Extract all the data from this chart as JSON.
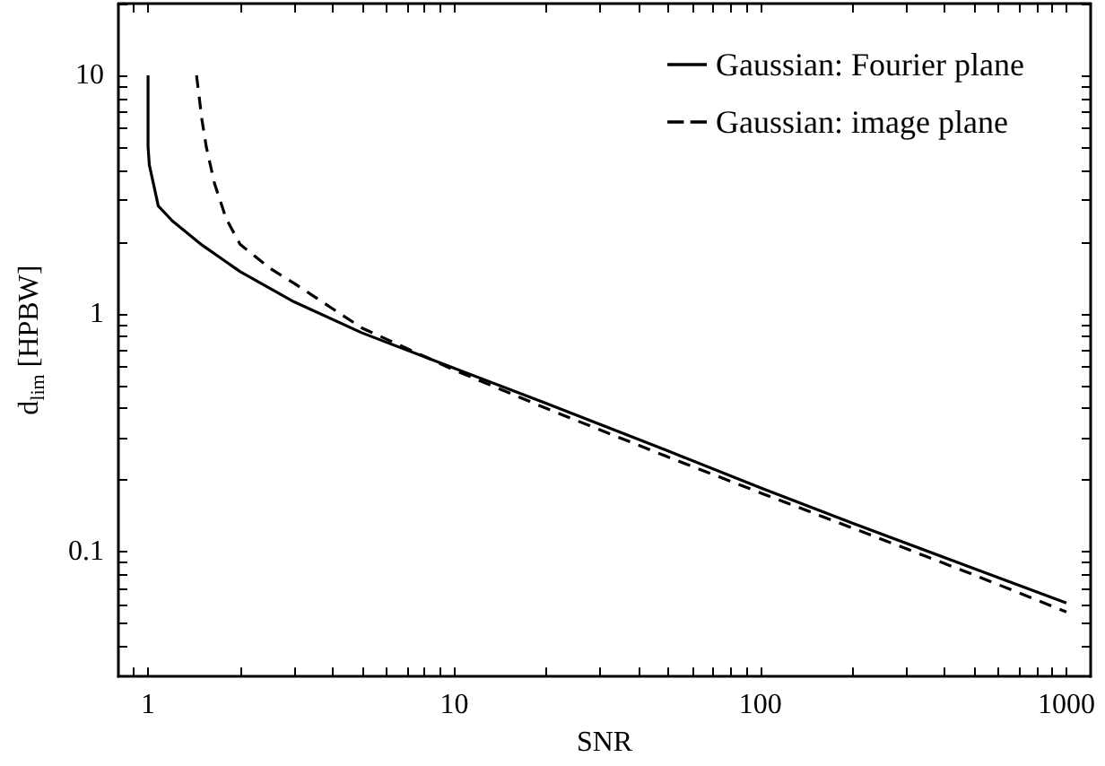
{
  "chart_data": {
    "type": "line",
    "xlabel": "SNR",
    "ylabel": "d$_{lim}$ [HPBW]",
    "log": "xy",
    "xlim": [
      0.8,
      1200
    ],
    "ylim": [
      0.03,
      20
    ],
    "xticks": [
      {
        "value": 0.9,
        "label": null
      },
      1,
      {
        "value": 2,
        "label": null
      },
      {
        "value": 3,
        "label": null
      },
      {
        "value": 4,
        "label": null
      },
      {
        "value": 5,
        "label": null
      },
      {
        "value": 6,
        "label": null
      },
      {
        "value": 7,
        "label": null
      },
      {
        "value": 8,
        "label": null
      },
      {
        "value": 9,
        "label": null
      },
      10,
      {
        "value": 20,
        "label": null
      },
      {
        "value": 30,
        "label": null
      },
      {
        "value": 40,
        "label": null
      },
      {
        "value": 50,
        "label": null
      },
      {
        "value": 60,
        "label": null
      },
      {
        "value": 70,
        "label": null
      },
      {
        "value": 80,
        "label": null
      },
      {
        "value": 90,
        "label": null
      },
      100,
      {
        "value": 200,
        "label": null
      },
      {
        "value": 300,
        "label": null
      },
      {
        "value": 400,
        "label": null
      },
      {
        "value": 500,
        "label": null
      },
      {
        "value": 600,
        "label": null
      },
      {
        "value": 700,
        "label": null
      },
      {
        "value": 800,
        "label": null
      },
      {
        "value": 900,
        "label": null
      },
      1000
    ],
    "yticks": [
      {
        "value": 0.04,
        "label": null
      },
      {
        "value": 0.05,
        "label": null
      },
      {
        "value": 0.06,
        "label": null
      },
      {
        "value": 0.07,
        "label": null
      },
      {
        "value": 0.08,
        "label": null
      },
      {
        "value": 0.09,
        "label": null
      },
      0.1,
      {
        "value": 0.2,
        "label": null
      },
      {
        "value": 0.3,
        "label": null
      },
      {
        "value": 0.4,
        "label": null
      },
      {
        "value": 0.5,
        "label": null
      },
      {
        "value": 0.6,
        "label": null
      },
      {
        "value": 0.7,
        "label": null
      },
      {
        "value": 0.8,
        "label": null
      },
      {
        "value": 0.9,
        "label": null
      },
      1,
      {
        "value": 2,
        "label": null
      },
      {
        "value": 3,
        "label": null
      },
      {
        "value": 4,
        "label": null
      },
      {
        "value": 5,
        "label": null
      },
      {
        "value": 6,
        "label": null
      },
      {
        "value": 7,
        "label": null
      },
      {
        "value": 8,
        "label": null
      },
      {
        "value": 9,
        "label": null
      },
      10,
      {
        "value": 20,
        "label": null
      }
    ],
    "grid": false,
    "legend": "top right",
    "marker": "none",
    "series": [
      {
        "name": "Gaussian: Fourier plane",
        "color": "#000000",
        "line_style": "solid",
        "x": [
          1.0,
          1.0,
          1.01,
          1.08,
          1.2,
          1.5,
          2,
          3,
          5,
          10,
          20,
          50,
          100,
          200,
          500,
          1000
        ],
        "values": [
          10,
          5,
          4.2,
          2.83,
          2.45,
          1.94,
          1.5,
          1.12,
          0.83,
          0.59,
          0.42,
          0.265,
          0.186,
          0.132,
          0.085,
          0.061
        ]
      },
      {
        "name": "Gaussian: image plane",
        "color": "#000000",
        "line_style": "dashed",
        "x": [
          1.44,
          1.5,
          1.55,
          1.65,
          1.8,
          2,
          2.5,
          3,
          4,
          5,
          10,
          20,
          50,
          100,
          200,
          500,
          1000
        ],
        "values": [
          10,
          6.5,
          5,
          3.5,
          2.5,
          1.95,
          1.55,
          1.34,
          1.05,
          0.87,
          0.58,
          0.4,
          0.25,
          0.177,
          0.126,
          0.08,
          0.056
        ]
      }
    ]
  }
}
